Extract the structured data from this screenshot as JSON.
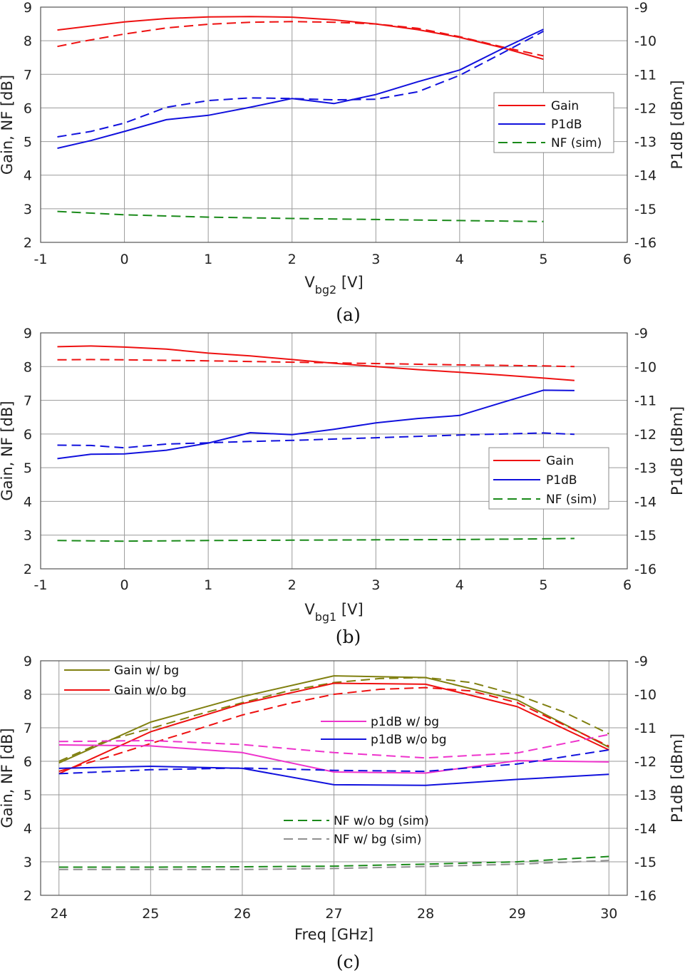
{
  "colors": {
    "red": "#ee1111",
    "blue": "#1111dd",
    "green": "#1a8a1a",
    "olive": "#808010",
    "magenta": "#ee33cc",
    "gray": "#909090"
  },
  "chart_data": [
    {
      "type": "line",
      "caption": "(a)",
      "xlabel_main": "V",
      "xlabel_sub": "bg2",
      "xlabel_unit": " [V]",
      "ylabel": "Gain, NF [dB]",
      "y2label": "P1dB [dBm]",
      "xlim": [
        -1,
        6
      ],
      "ylim": [
        2,
        9
      ],
      "y2lim": [
        -16,
        -9
      ],
      "xticks": [
        "-1",
        "0",
        "1",
        "2",
        "3",
        "4",
        "5",
        "6"
      ],
      "yticks": [
        "2",
        "3",
        "4",
        "5",
        "6",
        "7",
        "8",
        "9"
      ],
      "y2ticks": [
        "-16",
        "-15",
        "-14",
        "-13",
        "-12",
        "-11",
        "-10",
        "-9"
      ],
      "grid": true,
      "legend_position": "right",
      "legend": [
        {
          "label": "Gain",
          "color": "red",
          "dash": false
        },
        {
          "label": "P1dB",
          "color": "blue",
          "dash": false
        },
        {
          "label": "NF (sim)",
          "color": "green",
          "dash": true
        }
      ],
      "series": [
        {
          "color": "red",
          "dash": false,
          "axis": "left",
          "points": [
            [
              -0.8,
              8.32
            ],
            [
              0,
              8.56
            ],
            [
              0.5,
              8.66
            ],
            [
              1,
              8.71
            ],
            [
              1.5,
              8.72
            ],
            [
              2,
              8.7
            ],
            [
              2.5,
              8.62
            ],
            [
              3,
              8.5
            ],
            [
              3.5,
              8.33
            ],
            [
              4,
              8.1
            ],
            [
              4.5,
              7.8
            ],
            [
              5,
              7.45
            ]
          ]
        },
        {
          "color": "red",
          "dash": true,
          "axis": "left",
          "points": [
            [
              -0.8,
              7.83
            ],
            [
              -0.5,
              7.98
            ],
            [
              0,
              8.2
            ],
            [
              0.5,
              8.38
            ],
            [
              1,
              8.49
            ],
            [
              1.5,
              8.55
            ],
            [
              2,
              8.57
            ],
            [
              2.5,
              8.55
            ],
            [
              3,
              8.5
            ],
            [
              3.5,
              8.37
            ],
            [
              4,
              8.12
            ],
            [
              4.5,
              7.82
            ],
            [
              5,
              7.55
            ]
          ]
        },
        {
          "color": "blue",
          "dash": false,
          "axis": "right",
          "points": [
            [
              -0.8,
              -13.2
            ],
            [
              -0.4,
              -12.97
            ],
            [
              0,
              -12.7
            ],
            [
              0.5,
              -12.35
            ],
            [
              1,
              -12.22
            ],
            [
              1.5,
              -11.98
            ],
            [
              2,
              -11.72
            ],
            [
              2.5,
              -11.87
            ],
            [
              3,
              -11.6
            ],
            [
              3.5,
              -11.22
            ],
            [
              4,
              -10.87
            ],
            [
              4.5,
              -10.25
            ],
            [
              5,
              -9.66
            ]
          ]
        },
        {
          "color": "blue",
          "dash": true,
          "axis": "right",
          "points": [
            [
              -0.8,
              -12.86
            ],
            [
              -0.4,
              -12.7
            ],
            [
              0,
              -12.45
            ],
            [
              0.5,
              -11.98
            ],
            [
              1,
              -11.78
            ],
            [
              1.5,
              -11.7
            ],
            [
              2,
              -11.72
            ],
            [
              2.5,
              -11.76
            ],
            [
              3,
              -11.74
            ],
            [
              3.5,
              -11.52
            ],
            [
              4,
              -11.03
            ],
            [
              4.5,
              -10.38
            ],
            [
              5,
              -9.72
            ]
          ]
        },
        {
          "color": "green",
          "dash": true,
          "axis": "left",
          "points": [
            [
              -0.8,
              2.92
            ],
            [
              0,
              2.82
            ],
            [
              1,
              2.75
            ],
            [
              2,
              2.71
            ],
            [
              3,
              2.68
            ],
            [
              4,
              2.65
            ],
            [
              5,
              2.62
            ]
          ]
        }
      ]
    },
    {
      "type": "line",
      "caption": "(b)",
      "xlabel_main": "V",
      "xlabel_sub": "bg1",
      "xlabel_unit": " [V]",
      "ylabel": "Gain, NF [dB]",
      "y2label": "P1dB [dBm]",
      "xlim": [
        -1,
        6
      ],
      "ylim": [
        2,
        9
      ],
      "y2lim": [
        -16,
        -9
      ],
      "xticks": [
        "-1",
        "0",
        "1",
        "2",
        "3",
        "4",
        "5",
        "6"
      ],
      "yticks": [
        "2",
        "3",
        "4",
        "5",
        "6",
        "7",
        "8",
        "9"
      ],
      "y2ticks": [
        "-16",
        "-15",
        "-14",
        "-13",
        "-12",
        "-11",
        "-10",
        "-9"
      ],
      "grid": true,
      "legend_position": "lower-right",
      "legend": [
        {
          "label": "Gain",
          "color": "red",
          "dash": false
        },
        {
          "label": "P1dB",
          "color": "blue",
          "dash": false
        },
        {
          "label": "NF (sim)",
          "color": "green",
          "dash": true
        }
      ],
      "series": [
        {
          "color": "red",
          "dash": false,
          "axis": "left",
          "points": [
            [
              -0.8,
              8.59
            ],
            [
              -0.4,
              8.61
            ],
            [
              0,
              8.58
            ],
            [
              0.5,
              8.52
            ],
            [
              1,
              8.4
            ],
            [
              1.5,
              8.32
            ],
            [
              2,
              8.21
            ],
            [
              2.5,
              8.1
            ],
            [
              3,
              8.0
            ],
            [
              3.5,
              7.91
            ],
            [
              4,
              7.83
            ],
            [
              4.5,
              7.75
            ],
            [
              5,
              7.66
            ],
            [
              5.37,
              7.59
            ]
          ]
        },
        {
          "color": "red",
          "dash": true,
          "axis": "left",
          "points": [
            [
              -0.8,
              8.2
            ],
            [
              -0.4,
              8.21
            ],
            [
              0,
              8.2
            ],
            [
              1,
              8.17
            ],
            [
              2,
              8.13
            ],
            [
              3,
              8.09
            ],
            [
              4,
              8.05
            ],
            [
              5,
              8.02
            ],
            [
              5.37,
              8.0
            ]
          ]
        },
        {
          "color": "blue",
          "dash": false,
          "axis": "right",
          "points": [
            [
              -0.8,
              -12.73
            ],
            [
              -0.4,
              -12.6
            ],
            [
              0,
              -12.59
            ],
            [
              0.5,
              -12.48
            ],
            [
              1,
              -12.27
            ],
            [
              1.5,
              -11.96
            ],
            [
              2,
              -12.02
            ],
            [
              2.5,
              -11.86
            ],
            [
              3,
              -11.67
            ],
            [
              3.5,
              -11.54
            ],
            [
              4,
              -11.45
            ],
            [
              4.5,
              -11.07
            ],
            [
              5,
              -10.7
            ],
            [
              5.37,
              -10.71
            ]
          ]
        },
        {
          "color": "blue",
          "dash": true,
          "axis": "right",
          "points": [
            [
              -0.8,
              -12.33
            ],
            [
              -0.4,
              -12.34
            ],
            [
              0,
              -12.41
            ],
            [
              0.5,
              -12.3
            ],
            [
              1,
              -12.26
            ],
            [
              1.5,
              -12.22
            ],
            [
              2,
              -12.19
            ],
            [
              3,
              -12.11
            ],
            [
              4,
              -12.03
            ],
            [
              5,
              -11.97
            ],
            [
              5.37,
              -12.01
            ]
          ]
        },
        {
          "color": "green",
          "dash": true,
          "axis": "left",
          "points": [
            [
              -0.8,
              2.84
            ],
            [
              0,
              2.82
            ],
            [
              1,
              2.84
            ],
            [
              2,
              2.85
            ],
            [
              3,
              2.86
            ],
            [
              4,
              2.87
            ],
            [
              5,
              2.89
            ],
            [
              5.37,
              2.9
            ]
          ]
        }
      ]
    },
    {
      "type": "line",
      "caption": "(c)",
      "xlabel_main": "Freq [GHz]",
      "xlabel_sub": "",
      "xlabel_unit": "",
      "ylabel": "Gain, NF [dB]",
      "y2label": "P1dB [dBm]",
      "xlim": [
        23.8,
        30.2
      ],
      "ylim": [
        2,
        9
      ],
      "y2lim": [
        -16,
        -9
      ],
      "xticks": [
        "24",
        "25",
        "26",
        "27",
        "28",
        "29",
        "30"
      ],
      "yticks": [
        "2",
        "3",
        "4",
        "5",
        "6",
        "7",
        "8",
        "9"
      ],
      "y2ticks": [
        "-16",
        "-15",
        "-14",
        "-13",
        "-12",
        "-11",
        "-10",
        "-9"
      ],
      "grid": true,
      "legend_position": "inside",
      "legend": [
        {
          "label": "Gain w/ bg",
          "color": "olive",
          "dash": false
        },
        {
          "label": "Gain w/o bg",
          "color": "red",
          "dash": false
        },
        {
          "label": "p1dB w/ bg",
          "color": "magenta",
          "dash": false
        },
        {
          "label": "p1dB w/o bg",
          "color": "blue",
          "dash": false
        },
        {
          "label": "NF w/o bg (sim)",
          "color": "green",
          "dash": true
        },
        {
          "label": "NF w/ bg (sim)",
          "color": "gray",
          "dash": true
        }
      ],
      "series": [
        {
          "color": "olive",
          "dash": false,
          "axis": "left",
          "points": [
            [
              24,
              5.95
            ],
            [
              25,
              7.17
            ],
            [
              26,
              7.93
            ],
            [
              27,
              8.55
            ],
            [
              28,
              8.5
            ],
            [
              29,
              7.83
            ],
            [
              30,
              6.42
            ]
          ]
        },
        {
          "color": "olive",
          "dash": true,
          "axis": "left",
          "points": [
            [
              24,
              6.0
            ],
            [
              24.5,
              6.6
            ],
            [
              25,
              6.98
            ],
            [
              25.5,
              7.38
            ],
            [
              26,
              7.75
            ],
            [
              26.5,
              8.1
            ],
            [
              27,
              8.35
            ],
            [
              27.5,
              8.47
            ],
            [
              28,
              8.5
            ],
            [
              28.5,
              8.35
            ],
            [
              29,
              7.98
            ],
            [
              29.5,
              7.48
            ],
            [
              30,
              6.82
            ]
          ]
        },
        {
          "color": "red",
          "dash": false,
          "axis": "left",
          "points": [
            [
              24,
              5.63
            ],
            [
              25,
              6.88
            ],
            [
              26,
              7.72
            ],
            [
              27,
              8.33
            ],
            [
              28,
              8.3
            ],
            [
              29,
              7.63
            ],
            [
              30,
              6.34
            ]
          ]
        },
        {
          "color": "red",
          "dash": true,
          "axis": "left",
          "points": [
            [
              24,
              5.7
            ],
            [
              24.5,
              6.1
            ],
            [
              25,
              6.53
            ],
            [
              25.5,
              6.95
            ],
            [
              26,
              7.38
            ],
            [
              26.5,
              7.72
            ],
            [
              27,
              8.0
            ],
            [
              27.5,
              8.15
            ],
            [
              28,
              8.2
            ],
            [
              28.5,
              8.1
            ],
            [
              29,
              7.75
            ],
            [
              29.5,
              7.1
            ],
            [
              30,
              6.45
            ]
          ]
        },
        {
          "color": "magenta",
          "dash": false,
          "axis": "right",
          "points": [
            [
              24,
              -11.51
            ],
            [
              25,
              -11.54
            ],
            [
              26,
              -11.74
            ],
            [
              27,
              -12.32
            ],
            [
              28,
              -12.35
            ],
            [
              29,
              -11.98
            ],
            [
              30,
              -12.02
            ]
          ]
        },
        {
          "color": "magenta",
          "dash": true,
          "axis": "right",
          "points": [
            [
              24,
              -11.41
            ],
            [
              25,
              -11.38
            ],
            [
              26,
              -11.5
            ],
            [
              27,
              -11.74
            ],
            [
              28,
              -11.9
            ],
            [
              29,
              -11.75
            ],
            [
              30,
              -11.2
            ]
          ]
        },
        {
          "color": "blue",
          "dash": false,
          "axis": "right",
          "points": [
            [
              24,
              -12.21
            ],
            [
              25,
              -12.15
            ],
            [
              26,
              -12.21
            ],
            [
              27,
              -12.7
            ],
            [
              28,
              -12.72
            ],
            [
              29,
              -12.54
            ],
            [
              30,
              -12.39
            ]
          ]
        },
        {
          "color": "blue",
          "dash": true,
          "axis": "right",
          "points": [
            [
              24,
              -12.37
            ],
            [
              25,
              -12.25
            ],
            [
              26,
              -12.2
            ],
            [
              27,
              -12.27
            ],
            [
              28,
              -12.3
            ],
            [
              29,
              -12.08
            ],
            [
              30,
              -11.66
            ]
          ]
        },
        {
          "color": "green",
          "dash": true,
          "axis": "left",
          "points": [
            [
              24,
              2.84
            ],
            [
              25,
              2.84
            ],
            [
              26,
              2.85
            ],
            [
              27,
              2.87
            ],
            [
              28,
              2.93
            ],
            [
              29,
              3.0
            ],
            [
              30,
              3.16
            ]
          ]
        },
        {
          "color": "gray",
          "dash": true,
          "axis": "left",
          "points": [
            [
              24,
              2.77
            ],
            [
              25,
              2.77
            ],
            [
              26,
              2.77
            ],
            [
              27,
              2.8
            ],
            [
              28,
              2.86
            ],
            [
              29,
              2.93
            ],
            [
              30,
              3.04
            ]
          ]
        }
      ]
    }
  ]
}
